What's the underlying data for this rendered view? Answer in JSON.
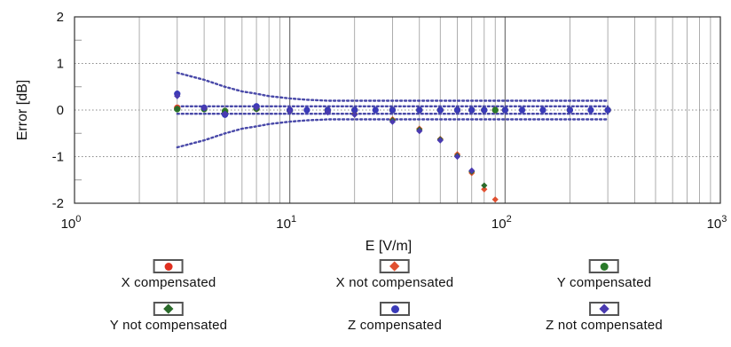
{
  "chart_data": {
    "type": "scatter",
    "title": "",
    "xlabel": "E [V/m]",
    "ylabel": "Error [dB]",
    "xscale": "log",
    "xlim": [
      1,
      1000
    ],
    "ylim": [
      -2,
      2
    ],
    "xticks": [
      1,
      10,
      100,
      1000
    ],
    "xtick_labels": [
      {
        "base": "10",
        "exp": "0"
      },
      {
        "base": "10",
        "exp": "1"
      },
      {
        "base": "10",
        "exp": "2"
      },
      {
        "base": "10",
        "exp": "3"
      }
    ],
    "yticks": [
      -2,
      -1,
      0,
      1,
      2
    ],
    "ytick_labels": [
      "-2",
      "-1",
      "0",
      "1",
      "2"
    ],
    "grid": true,
    "legend_position": "bottom",
    "uncertainty_band": {
      "outer": {
        "x": [
          3,
          4,
          5,
          6,
          7,
          8,
          10,
          12,
          15,
          20,
          30,
          50,
          100,
          200,
          300
        ],
        "upper": [
          0.8,
          0.65,
          0.5,
          0.4,
          0.35,
          0.3,
          0.25,
          0.22,
          0.2,
          0.2,
          0.2,
          0.2,
          0.2,
          0.2,
          0.2
        ],
        "lower": [
          -0.8,
          -0.65,
          -0.5,
          -0.4,
          -0.35,
          -0.3,
          -0.25,
          -0.22,
          -0.2,
          -0.2,
          -0.2,
          -0.2,
          -0.2,
          -0.2,
          -0.2
        ]
      },
      "inner": {
        "x": [
          3,
          300
        ],
        "upper": [
          0.08,
          0.08
        ],
        "lower": [
          -0.08,
          -0.08
        ]
      }
    },
    "series": [
      {
        "name": "X compensated",
        "color": "#e03020",
        "marker": "circle",
        "x": [
          3,
          4,
          5,
          7,
          10,
          15,
          20,
          30,
          40,
          50,
          60,
          70,
          80,
          90,
          100,
          200,
          300
        ],
        "y": [
          0.05,
          0.03,
          -0.02,
          0.03,
          0.0,
          0.0,
          0.0,
          0.0,
          0.0,
          0.0,
          0.0,
          0.0,
          0.0,
          0.0,
          0.0,
          0.0,
          0.0
        ]
      },
      {
        "name": "X not compensated",
        "color": "#e05030",
        "marker": "diamond",
        "x": [
          3,
          4,
          5,
          7,
          10,
          15,
          20,
          30,
          40,
          50,
          60,
          70,
          80,
          90
        ],
        "y": [
          0.05,
          0.02,
          -0.03,
          0.02,
          -0.01,
          -0.03,
          -0.08,
          -0.2,
          -0.4,
          -0.62,
          -0.95,
          -1.35,
          -1.7,
          -1.92
        ]
      },
      {
        "name": "Y compensated",
        "color": "#2a7a2a",
        "marker": "circle",
        "x": [
          3,
          4,
          5,
          7,
          10,
          15,
          20,
          30,
          40,
          50,
          60,
          70,
          80,
          90,
          100,
          200,
          300
        ],
        "y": [
          0.02,
          0.02,
          -0.02,
          0.03,
          -0.01,
          0.0,
          0.0,
          0.0,
          0.0,
          0.0,
          0.0,
          0.0,
          0.0,
          0.0,
          0.0,
          0.0,
          0.0
        ]
      },
      {
        "name": "Y not compensated",
        "color": "#2a6a2a",
        "marker": "diamond",
        "x": [
          3,
          4,
          5,
          7,
          10,
          15,
          20,
          30,
          40,
          50,
          60,
          70,
          80
        ],
        "y": [
          0.03,
          0.02,
          -0.05,
          0.02,
          -0.02,
          -0.04,
          -0.09,
          -0.22,
          -0.42,
          -0.63,
          -0.98,
          -1.32,
          -1.62
        ]
      },
      {
        "name": "Z compensated",
        "color": "#3a3ab8",
        "marker": "circle",
        "x": [
          3,
          4,
          5,
          7,
          10,
          12,
          15,
          20,
          25,
          30,
          40,
          50,
          60,
          70,
          80,
          100,
          120,
          150,
          200,
          250,
          300
        ],
        "y": [
          0.35,
          0.05,
          -0.1,
          0.08,
          0.0,
          0.0,
          0.0,
          0.0,
          0.0,
          0.0,
          0.0,
          0.0,
          0.0,
          0.0,
          0.0,
          0.0,
          0.0,
          0.0,
          0.0,
          0.0,
          0.0
        ]
      },
      {
        "name": "Z not compensated",
        "color": "#4a3ab0",
        "marker": "diamond",
        "x": [
          3,
          4,
          5,
          7,
          10,
          15,
          20,
          30,
          40,
          50,
          60,
          70
        ],
        "y": [
          0.3,
          0.04,
          -0.08,
          0.05,
          -0.03,
          -0.05,
          -0.1,
          -0.25,
          -0.45,
          -0.65,
          -1.0,
          -1.3
        ]
      }
    ]
  },
  "legend": {
    "items": [
      {
        "label": "X compensated",
        "color": "#e03020",
        "marker": "circle"
      },
      {
        "label": "X not compensated",
        "color": "#e05030",
        "marker": "diamond"
      },
      {
        "label": "Y compensated",
        "color": "#2a7a2a",
        "marker": "circle"
      },
      {
        "label": "Y not compensated",
        "color": "#2a6a2a",
        "marker": "diamond"
      },
      {
        "label": "Z compensated",
        "color": "#3a3ab8",
        "marker": "circle"
      },
      {
        "label": "Z not compensated",
        "color": "#4a3ab0",
        "marker": "diamond"
      }
    ]
  }
}
